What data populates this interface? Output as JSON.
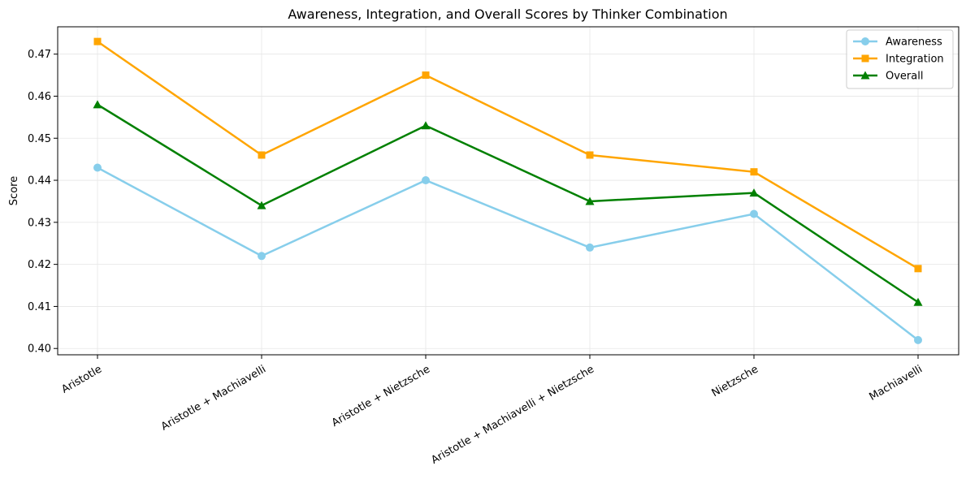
{
  "chart_data": {
    "type": "line",
    "title": "Awareness, Integration, and Overall Scores by Thinker Combination",
    "xlabel": "",
    "ylabel": "Score",
    "categories": [
      "Aristotle",
      "Aristotle + Machiavelli",
      "Aristotle + Nietzsche",
      "Aristotle + Machiavelli + Nietzsche",
      "Nietzsche",
      "Machiavelli"
    ],
    "ylim": [
      0.3985,
      0.4765
    ],
    "yticks": [
      "0.40",
      "0.41",
      "0.42",
      "0.43",
      "0.44",
      "0.45",
      "0.46",
      "0.47"
    ],
    "grid": true,
    "legend_position": "top-right",
    "series": [
      {
        "name": "Awareness",
        "color": "#87ceeb",
        "marker": "circle",
        "values": [
          0.443,
          0.422,
          0.44,
          0.424,
          0.432,
          0.402
        ]
      },
      {
        "name": "Integration",
        "color": "#ffa500",
        "marker": "square",
        "values": [
          0.473,
          0.446,
          0.465,
          0.446,
          0.442,
          0.419
        ]
      },
      {
        "name": "Overall",
        "color": "#008000",
        "marker": "triangle",
        "values": [
          0.458,
          0.434,
          0.453,
          0.435,
          0.437,
          0.411
        ]
      }
    ]
  }
}
